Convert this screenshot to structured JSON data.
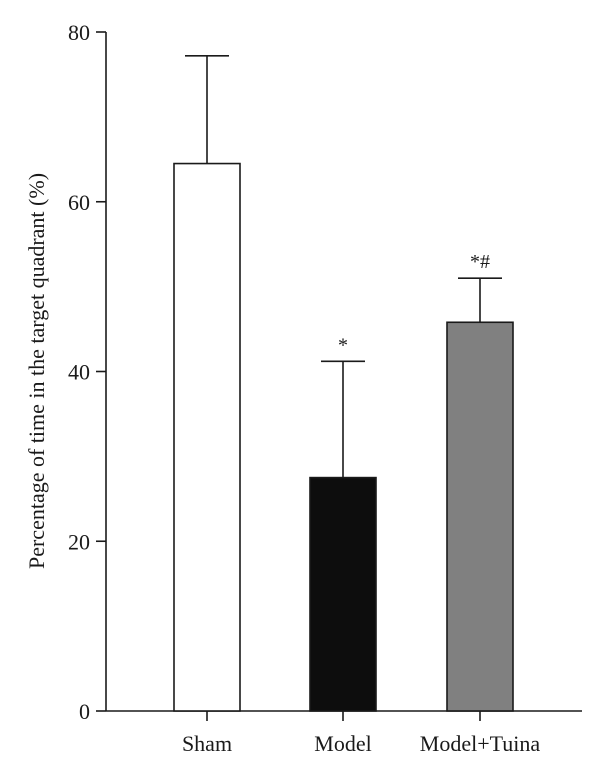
{
  "chart_data": {
    "type": "bar",
    "title": "",
    "xlabel": "",
    "ylabel": "Percentage of time in the target quadrant (%)",
    "ylim": [
      0,
      80
    ],
    "yticks": [
      "0",
      "20",
      "40",
      "60",
      "80"
    ],
    "categories": [
      "Sham",
      "Model",
      "Model+Tuina"
    ],
    "values": [
      64.5,
      27.5,
      45.8
    ],
    "error": [
      12.7,
      13.7,
      5.2
    ],
    "annotations": [
      "",
      "*",
      "*#"
    ],
    "bar_colors": [
      "#ffffff",
      "#0d0d0d",
      "#808080"
    ],
    "grid": false,
    "legend": "none"
  }
}
